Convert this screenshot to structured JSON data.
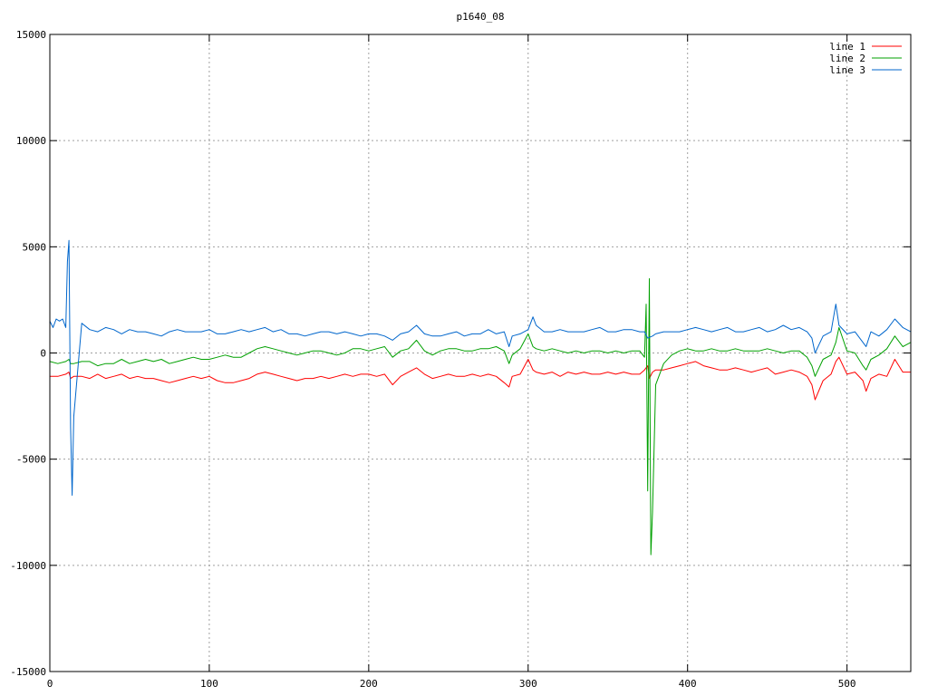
{
  "chart_data": {
    "type": "line",
    "title": "p1640_08",
    "xlabel": "",
    "ylabel": "",
    "xlim": [
      0,
      540
    ],
    "ylim": [
      -15000,
      15000
    ],
    "x_ticks": [
      0,
      100,
      200,
      300,
      400,
      500
    ],
    "y_ticks": [
      -15000,
      -10000,
      -5000,
      0,
      5000,
      10000,
      15000
    ],
    "grid": true,
    "legend": "top-right",
    "series": [
      {
        "name": "line 1",
        "color": "#ff0000",
        "x": [
          0,
          5,
          10,
          12,
          13,
          15,
          20,
          25,
          30,
          35,
          40,
          45,
          50,
          55,
          60,
          65,
          70,
          75,
          80,
          85,
          90,
          95,
          100,
          105,
          110,
          115,
          120,
          125,
          130,
          135,
          140,
          145,
          150,
          155,
          160,
          165,
          170,
          175,
          180,
          185,
          190,
          195,
          200,
          205,
          210,
          215,
          220,
          225,
          230,
          235,
          240,
          245,
          250,
          255,
          260,
          265,
          270,
          275,
          280,
          285,
          288,
          290,
          295,
          300,
          303,
          305,
          310,
          315,
          320,
          325,
          330,
          335,
          340,
          345,
          350,
          355,
          360,
          365,
          370,
          373,
          375,
          376,
          378,
          380,
          385,
          390,
          395,
          400,
          405,
          410,
          415,
          420,
          425,
          430,
          435,
          440,
          445,
          450,
          455,
          460,
          465,
          470,
          475,
          478,
          480,
          485,
          490,
          493,
          495,
          500,
          505,
          510,
          512,
          515,
          520,
          525,
          530,
          535,
          540
        ],
        "y": [
          -1100,
          -1100,
          -1000,
          -900,
          -1200,
          -1100,
          -1100,
          -1200,
          -1000,
          -1200,
          -1100,
          -1000,
          -1200,
          -1100,
          -1200,
          -1200,
          -1300,
          -1400,
          -1300,
          -1200,
          -1100,
          -1200,
          -1100,
          -1300,
          -1400,
          -1400,
          -1300,
          -1200,
          -1000,
          -900,
          -1000,
          -1100,
          -1200,
          -1300,
          -1200,
          -1200,
          -1100,
          -1200,
          -1100,
          -1000,
          -1100,
          -1000,
          -1000,
          -1100,
          -1000,
          -1500,
          -1100,
          -900,
          -700,
          -1000,
          -1200,
          -1100,
          -1000,
          -1100,
          -1100,
          -1000,
          -1100,
          -1000,
          -1100,
          -1400,
          -1600,
          -1100,
          -1000,
          -300,
          -800,
          -900,
          -1000,
          -900,
          -1100,
          -900,
          -1000,
          -900,
          -1000,
          -1000,
          -900,
          -1000,
          -900,
          -1000,
          -1000,
          -800,
          -600,
          -1200,
          -900,
          -800,
          -800,
          -700,
          -600,
          -500,
          -400,
          -600,
          -700,
          -800,
          -800,
          -700,
          -800,
          -900,
          -800,
          -700,
          -1000,
          -900,
          -800,
          -900,
          -1100,
          -1500,
          -2200,
          -1300,
          -1000,
          -400,
          -200,
          -1000,
          -900,
          -1300,
          -1800,
          -1200,
          -1000,
          -1100,
          -300,
          -900,
          -900
        ]
      },
      {
        "name": "line 2",
        "color": "#00a000",
        "x": [
          0,
          5,
          10,
          12,
          13,
          15,
          20,
          25,
          30,
          35,
          40,
          45,
          50,
          55,
          60,
          65,
          70,
          75,
          80,
          85,
          90,
          95,
          100,
          105,
          110,
          115,
          120,
          125,
          130,
          135,
          140,
          145,
          150,
          155,
          160,
          165,
          170,
          175,
          180,
          185,
          190,
          195,
          200,
          205,
          210,
          215,
          220,
          225,
          230,
          235,
          240,
          245,
          250,
          255,
          260,
          265,
          270,
          275,
          280,
          285,
          288,
          290,
          295,
          300,
          303,
          305,
          310,
          315,
          320,
          325,
          330,
          335,
          340,
          345,
          350,
          355,
          360,
          365,
          370,
          373,
          374,
          375,
          376,
          377,
          378,
          380,
          385,
          390,
          395,
          400,
          405,
          410,
          415,
          420,
          425,
          430,
          435,
          440,
          445,
          450,
          455,
          460,
          465,
          470,
          475,
          478,
          480,
          485,
          490,
          493,
          495,
          500,
          505,
          510,
          512,
          515,
          520,
          525,
          530,
          535,
          540
        ],
        "y": [
          -400,
          -500,
          -400,
          -300,
          -500,
          -500,
          -400,
          -400,
          -600,
          -500,
          -500,
          -300,
          -500,
          -400,
          -300,
          -400,
          -300,
          -500,
          -400,
          -300,
          -200,
          -300,
          -300,
          -200,
          -100,
          -200,
          -200,
          0,
          200,
          300,
          200,
          100,
          0,
          -100,
          0,
          100,
          100,
          0,
          -100,
          0,
          200,
          200,
          100,
          200,
          300,
          -200,
          100,
          200,
          600,
          100,
          -100,
          100,
          200,
          200,
          100,
          100,
          200,
          200,
          300,
          100,
          -500,
          -100,
          200,
          900,
          300,
          200,
          100,
          200,
          100,
          0,
          100,
          0,
          100,
          100,
          0,
          100,
          0,
          100,
          100,
          -200,
          2300,
          -6500,
          3500,
          -9500,
          -7500,
          -1500,
          -500,
          -100,
          100,
          200,
          100,
          100,
          200,
          100,
          100,
          200,
          100,
          100,
          100,
          200,
          100,
          0,
          100,
          100,
          -200,
          -600,
          -1100,
          -300,
          -100,
          500,
          1200,
          100,
          0,
          -600,
          -800,
          -300,
          -100,
          200,
          800,
          300,
          500
        ]
      },
      {
        "name": "line 3",
        "color": "#0066cc",
        "x": [
          0,
          2,
          4,
          6,
          8,
          10,
          11,
          12,
          13,
          14,
          15,
          20,
          25,
          30,
          35,
          40,
          45,
          50,
          55,
          60,
          65,
          70,
          75,
          80,
          85,
          90,
          95,
          100,
          105,
          110,
          115,
          120,
          125,
          130,
          135,
          140,
          145,
          150,
          155,
          160,
          165,
          170,
          175,
          180,
          185,
          190,
          195,
          200,
          205,
          210,
          215,
          220,
          225,
          230,
          235,
          240,
          245,
          250,
          255,
          260,
          265,
          270,
          275,
          280,
          285,
          288,
          290,
          295,
          300,
          303,
          305,
          310,
          315,
          320,
          325,
          330,
          335,
          340,
          345,
          350,
          355,
          360,
          365,
          370,
          373,
          375,
          378,
          380,
          385,
          390,
          395,
          400,
          405,
          410,
          415,
          420,
          425,
          430,
          435,
          440,
          445,
          450,
          455,
          460,
          465,
          470,
          475,
          478,
          480,
          485,
          490,
          493,
          495,
          500,
          505,
          510,
          512,
          515,
          520,
          525,
          530,
          535,
          540
        ],
        "y": [
          1500,
          1200,
          1600,
          1500,
          1600,
          1200,
          4300,
          5300,
          -3500,
          -6700,
          -3000,
          1400,
          1100,
          1000,
          1200,
          1100,
          900,
          1100,
          1000,
          1000,
          900,
          800,
          1000,
          1100,
          1000,
          1000,
          1000,
          1100,
          900,
          900,
          1000,
          1100,
          1000,
          1100,
          1200,
          1000,
          1100,
          900,
          900,
          800,
          900,
          1000,
          1000,
          900,
          1000,
          900,
          800,
          900,
          900,
          800,
          600,
          900,
          1000,
          1300,
          900,
          800,
          800,
          900,
          1000,
          800,
          900,
          900,
          1100,
          900,
          1000,
          300,
          800,
          900,
          1100,
          1700,
          1300,
          1000,
          1000,
          1100,
          1000,
          1000,
          1000,
          1100,
          1200,
          1000,
          1000,
          1100,
          1100,
          1000,
          1000,
          700,
          800,
          900,
          1000,
          1000,
          1000,
          1100,
          1200,
          1100,
          1000,
          1100,
          1200,
          1000,
          1000,
          1100,
          1200,
          1000,
          1100,
          1300,
          1100,
          1200,
          1000,
          700,
          0,
          800,
          1000,
          2300,
          1300,
          900,
          1000,
          500,
          300,
          1000,
          800,
          1100,
          1600,
          1200,
          1000
        ]
      }
    ]
  }
}
